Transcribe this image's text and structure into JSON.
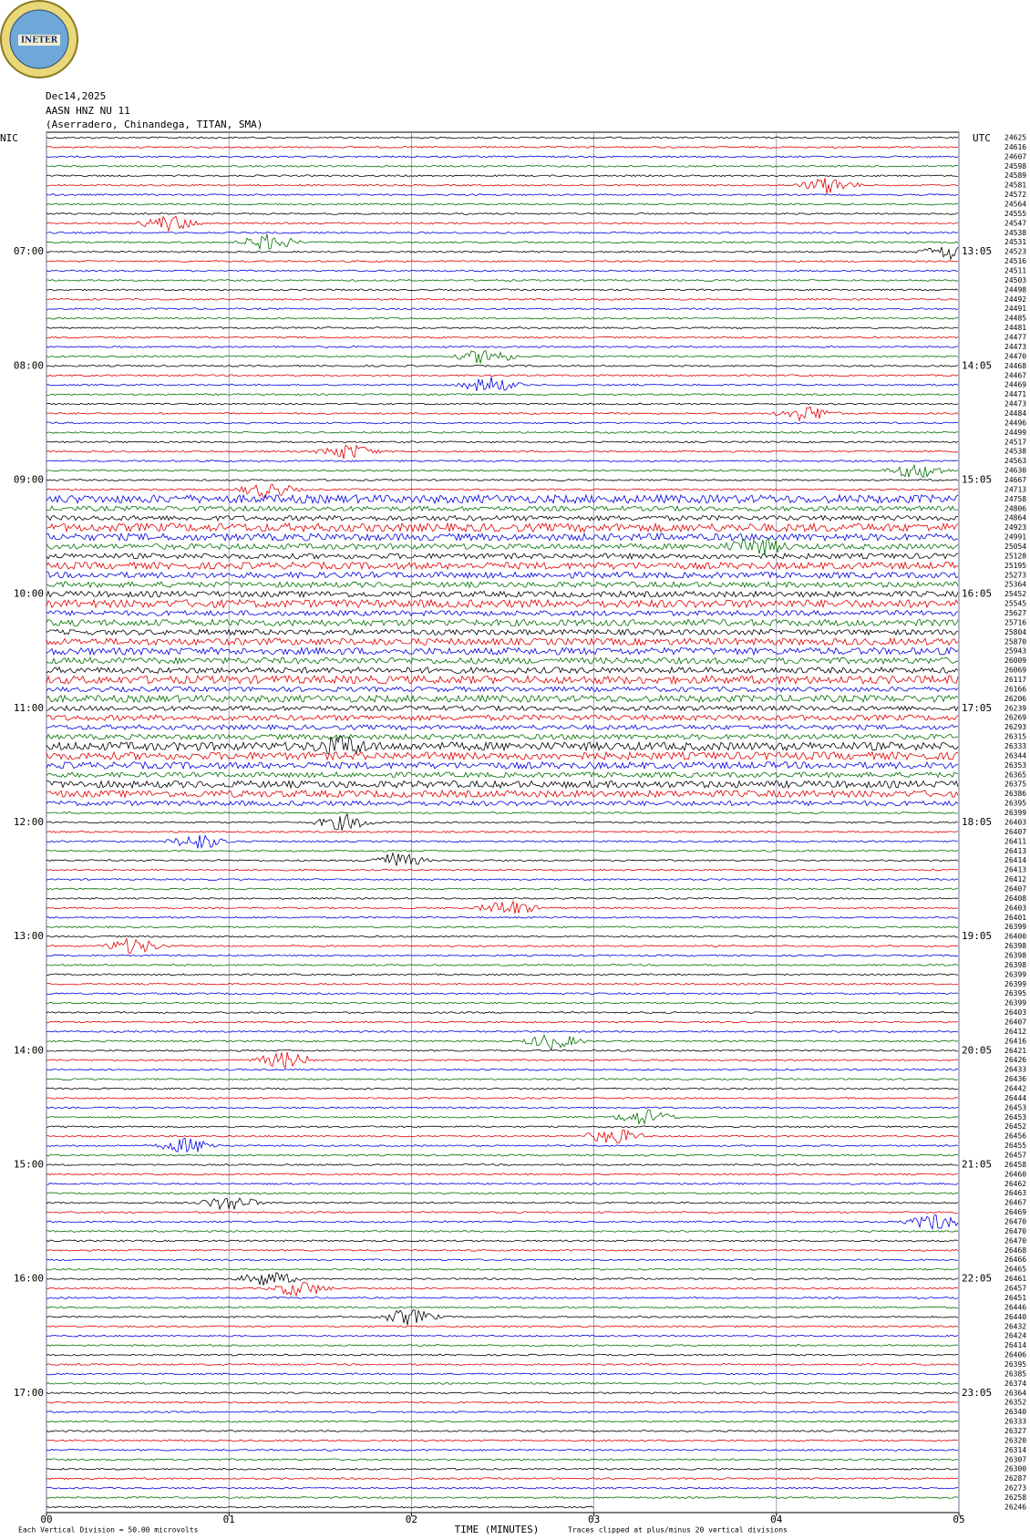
{
  "logo": {
    "text": "INETER"
  },
  "header": {
    "date": "Dec14,2025",
    "channel": "AASN HNZ NU 11",
    "station": "(Aserradero, Chinandega, TITAN, SMA)"
  },
  "left_axis": {
    "title": "NIC",
    "labels": [
      "07:00",
      "08:00",
      "09:00",
      "10:00",
      "11:00",
      "12:00",
      "13:00",
      "14:00",
      "15:00",
      "16:00",
      "17:00"
    ]
  },
  "right_axis": {
    "title": "UTC",
    "labels": [
      "13:05",
      "14:05",
      "15:05",
      "16:05",
      "17:05",
      "18:05",
      "19:05",
      "20:05",
      "21:05",
      "22:05",
      "23:05"
    ]
  },
  "row_values": [
    24625,
    24616,
    24607,
    24598,
    24589,
    24581,
    24572,
    24564,
    24555,
    24547,
    24538,
    24531,
    24523,
    24516,
    24511,
    24503,
    24498,
    24492,
    24491,
    24485,
    24481,
    24477,
    24473,
    24470,
    24468,
    24467,
    24469,
    24471,
    24473,
    24484,
    24496,
    24499,
    24517,
    24538,
    24563,
    24630,
    24667,
    24713,
    24758,
    24806,
    24864,
    24923,
    24991,
    25054,
    25128,
    25195,
    25273,
    25364,
    25452,
    25545,
    25627,
    25716,
    25804,
    25870,
    25943,
    26009,
    26069,
    26117,
    26166,
    26206,
    26239,
    26269,
    26293,
    26315,
    26333,
    26344,
    26353,
    26365,
    26375,
    26386,
    26395,
    26399,
    26403,
    26407,
    26411,
    26413,
    26414,
    26413,
    26412,
    26407,
    26408,
    26403,
    26401,
    26399,
    26400,
    26398,
    26398,
    26398,
    26399,
    26399,
    26395,
    26399,
    26403,
    26407,
    26412,
    26416,
    26421,
    26426,
    26433,
    26436,
    26442,
    26444,
    26453,
    26453,
    26452,
    26456,
    26455,
    26457,
    26458,
    26460,
    26462,
    26463,
    26467,
    26469,
    26470,
    26470,
    26470,
    26468,
    26466,
    26465,
    26461,
    26457,
    26451,
    26446,
    26440,
    26432,
    26424,
    26414,
    26406,
    26395,
    26385,
    26374,
    26364,
    26352,
    26340,
    26333,
    26327,
    26320,
    26314,
    26307,
    26300,
    26287,
    26273,
    26258,
    26246
  ],
  "x_axis": {
    "title": "TIME (MINUTES)",
    "ticks": [
      {
        "value": 0,
        "label": "00"
      },
      {
        "value": 1,
        "label": "01"
      },
      {
        "value": 2,
        "label": "02"
      },
      {
        "value": 3,
        "label": "03"
      },
      {
        "value": 4,
        "label": "04"
      },
      {
        "value": 5,
        "label": "05"
      }
    ]
  },
  "footer": {
    "scale": "Each Vertical Division =   50.00 microvolts",
    "clip": "Traces clipped at plus/minus 20 vertical divisions"
  }
}
